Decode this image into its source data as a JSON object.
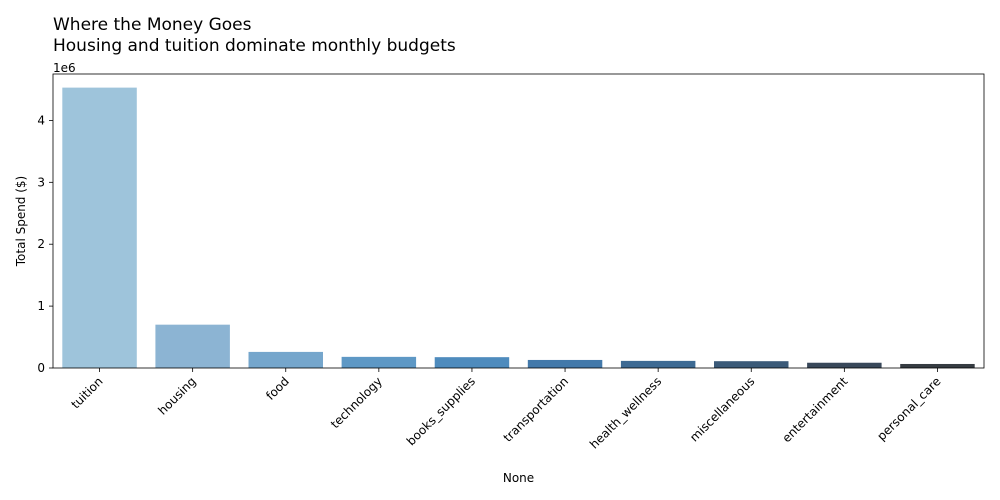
{
  "chart_data": {
    "type": "bar",
    "title": "Where the Money Goes",
    "subtitle": "Housing and tuition dominate monthly budgets",
    "xlabel": "None",
    "ylabel": "Total Spend ($)",
    "y_offset_label": "1e6",
    "ylim": [
      0,
      4.75
    ],
    "y_ticks": [
      "0",
      "1",
      "2",
      "3",
      "4"
    ],
    "categories": [
      "tuition",
      "housing",
      "food",
      "technology",
      "books_supplies",
      "transportation",
      "health_wellness",
      "miscellaneous",
      "entertainment",
      "personal_care"
    ],
    "values": [
      4.53,
      0.7,
      0.26,
      0.18,
      0.175,
      0.13,
      0.115,
      0.11,
      0.085,
      0.065
    ],
    "colors": [
      "#9ec4db",
      "#8cb4d3",
      "#75a6cc",
      "#5e98c5",
      "#4e8bbd",
      "#4379aa",
      "#3d6a93",
      "#3b5a78",
      "#39485a",
      "#363c42"
    ],
    "grid": false,
    "legend": "none"
  }
}
